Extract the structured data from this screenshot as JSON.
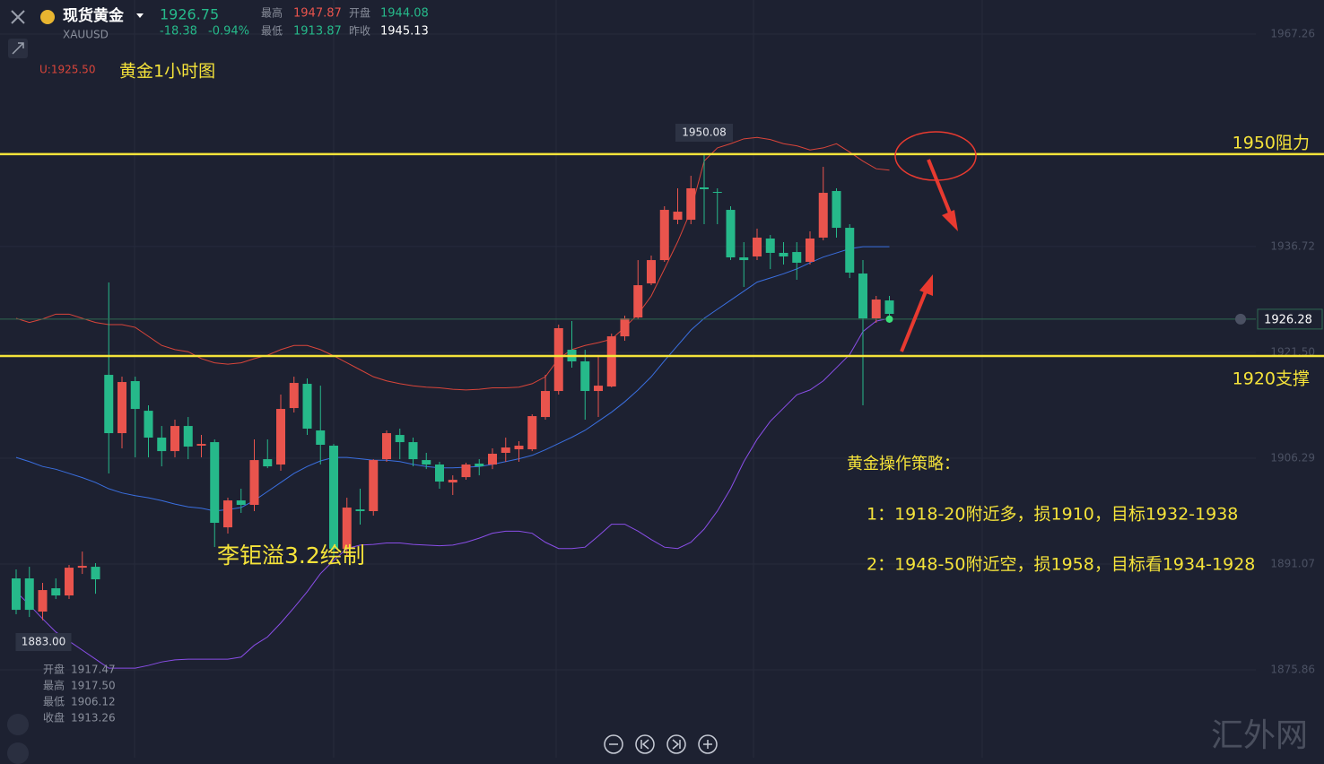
{
  "header": {
    "name": "现货黄金",
    "symbol": "XAUUSD",
    "price": "1926.75",
    "change": "-18.38",
    "change_pct": "-0.94%",
    "stats": [
      {
        "label": "最高",
        "value": "1947.87"
      },
      {
        "label": "开盘",
        "value": "1944.08"
      },
      {
        "label": "最低",
        "value": "1913.87"
      },
      {
        "label": "昨收",
        "value": "1945.13"
      }
    ]
  },
  "legend": "U:1925.50",
  "readout": [
    {
      "label": "开盘",
      "value": "1917.47"
    },
    {
      "label": "最高",
      "value": "1917.50"
    },
    {
      "label": "最低",
      "value": "1906.12"
    },
    {
      "label": "收盘",
      "value": "1913.26"
    }
  ],
  "annotations": {
    "chart_title": "黄金1小时图",
    "author": "李钜溢3.2绘制",
    "strategy_title": "黄金操作策略：",
    "strategy": [
      "1：1918-20附近多，损1910，目标1932-1938",
      "2：1948-50附近空，损1958，目标看1934-1928"
    ]
  },
  "watermark": "汇外网",
  "chart_data": {
    "type": "candlestick",
    "up_color": "#e9544d",
    "down_color": "#26b98a",
    "open": [
      1889.01,
      1889.01,
      1884.24,
      1887.59,
      1886.56,
      1890.55,
      1890.68,
      1918.27,
      1909.89,
      1917.37,
      1913.11,
      1909.25,
      1907.31,
      1910.92,
      1908.09,
      1908.6,
      1896.35,
      1900.22,
      1899.58,
      1906.15,
      1905.38,
      1913.5,
      1916.98,
      1910.28,
      1908.09,
      1893.26,
      1898.93,
      1898.68,
      1906.15,
      1909.63,
      1908.6,
      1906.02,
      1905.38,
      1902.8,
      1903.57,
      1905.51,
      1905.38,
      1907.06,
      1907.57,
      1907.57,
      1912.21,
      1915.95,
      1921.88,
      1920.21,
      1915.95,
      1916.6,
      1923.81,
      1926.52,
      1931.42,
      1934.77,
      1940.57,
      1940.57,
      1945.22,
      1944.57,
      1941.99,
      1935.16,
      1935.29,
      1937.87,
      1935.81,
      1935.93,
      1934.52,
      1938.0,
      1944.7,
      1939.41,
      1932.84,
      1926.39,
      1928.97
    ],
    "high": [
      1890.3,
      1890.68,
      1888.36,
      1889.01,
      1890.94,
      1892.87,
      1891.2,
      1931.55,
      1918.01,
      1918.01,
      1913.89,
      1910.92,
      1911.83,
      1912.21,
      1909.63,
      1908.99,
      1900.61,
      1901.9,
      1908.99,
      1908.99,
      1915.44,
      1918.01,
      1917.76,
      1916.72,
      1908.34,
      1900.61,
      1901.9,
      1906.15,
      1910.28,
      1910.54,
      1909.25,
      1907.06,
      1905.77,
      1903.83,
      1905.64,
      1906.15,
      1907.7,
      1909.25,
      1908.73,
      1912.6,
      1918.27,
      1925.49,
      1926.01,
      1921.88,
      1920.85,
      1924.2,
      1926.78,
      1934.77,
      1935.42,
      1942.51,
      1945.09,
      1946.89,
      1950.08,
      1945.09,
      1942.51,
      1937.35,
      1939.29,
      1938.38,
      1937.35,
      1937.35,
      1938.9,
      1948.18,
      1945.09,
      1939.93,
      1934.77,
      1929.62,
      1929.62
    ],
    "low": [
      1883.85,
      1883.46,
      1883.0,
      1886.04,
      1886.04,
      1889.65,
      1886.81,
      1904.09,
      1907.7,
      1906.41,
      1906.41,
      1905.12,
      1906.41,
      1906.15,
      1906.41,
      1893.52,
      1895.45,
      1898.42,
      1898.68,
      1904.86,
      1904.48,
      1912.86,
      1909.63,
      1905.38,
      1892.23,
      1892.23,
      1896.74,
      1898.03,
      1905.77,
      1906.15,
      1905.12,
      1904.73,
      1901.9,
      1901.0,
      1903.19,
      1903.83,
      1904.73,
      1905.77,
      1905.77,
      1907.31,
      1911.83,
      1915.44,
      1919.3,
      1911.83,
      1912.21,
      1916.47,
      1923.17,
      1926.26,
      1931.16,
      1934.52,
      1939.93,
      1939.93,
      1939.93,
      1939.93,
      1934.77,
      1930.91,
      1934.77,
      1933.48,
      1934.13,
      1931.94,
      1934.13,
      1937.61,
      1938.0,
      1932.19,
      1913.89,
      1925.75,
      1925.75
    ],
    "close": [
      1884.49,
      1884.49,
      1887.33,
      1886.56,
      1890.55,
      1890.81,
      1888.88,
      1909.89,
      1917.24,
      1913.37,
      1909.25,
      1907.31,
      1910.92,
      1907.96,
      1908.34,
      1897.0,
      1900.22,
      1899.58,
      1906.02,
      1905.12,
      1913.37,
      1917.11,
      1910.54,
      1908.22,
      1893.26,
      1899.19,
      1898.68,
      1906.02,
      1909.89,
      1908.6,
      1906.15,
      1905.38,
      1902.93,
      1903.19,
      1905.38,
      1905.12,
      1906.93,
      1907.83,
      1908.09,
      1912.34,
      1915.95,
      1924.98,
      1920.21,
      1915.95,
      1916.72,
      1923.81,
      1926.39,
      1931.16,
      1934.77,
      1941.99,
      1941.73,
      1945.09,
      1944.96,
      1944.44,
      1935.16,
      1934.77,
      1938.0,
      1935.81,
      1935.29,
      1934.39,
      1937.87,
      1944.44,
      1939.41,
      1932.97,
      1926.39,
      1929.1,
      1927.04
    ],
    "bands": [
      {
        "color": "#d9453a",
        "values": [
          1926.4,
          1925.8,
          1926.3,
          1927.0,
          1927.0,
          1926.4,
          1925.8,
          1925.5,
          1925.5,
          1925.1,
          1923.8,
          1922.5,
          1921.9,
          1921.6,
          1920.6,
          1920.0,
          1919.8,
          1920.0,
          1920.6,
          1921.1,
          1921.9,
          1922.5,
          1922.5,
          1921.9,
          1921.0,
          1920.0,
          1919.0,
          1918.0,
          1917.4,
          1917.0,
          1916.7,
          1916.5,
          1916.4,
          1916.2,
          1916.1,
          1916.2,
          1916.4,
          1916.4,
          1916.5,
          1917.0,
          1918.0,
          1920.6,
          1921.9,
          1922.5,
          1922.9,
          1923.4,
          1925.1,
          1927.0,
          1929.6,
          1933.5,
          1937.4,
          1941.9,
          1949.0,
          1950.9,
          1951.5,
          1952.2,
          1952.4,
          1952.1,
          1951.5,
          1951.2,
          1950.6,
          1950.9,
          1951.5,
          1950.3,
          1949.0,
          1947.9,
          1947.7
        ]
      },
      {
        "color": "#3a6fe0",
        "values": [
          1906.4,
          1905.8,
          1905.1,
          1904.7,
          1904.1,
          1903.5,
          1902.8,
          1901.9,
          1901.3,
          1900.9,
          1900.6,
          1900.2,
          1899.7,
          1899.3,
          1899.1,
          1898.7,
          1898.9,
          1899.2,
          1900.2,
          1901.5,
          1902.8,
          1904.1,
          1905.1,
          1905.9,
          1906.4,
          1906.4,
          1906.2,
          1906.0,
          1906.0,
          1905.8,
          1905.4,
          1905.1,
          1904.9,
          1904.9,
          1905.0,
          1905.1,
          1905.4,
          1905.8,
          1906.2,
          1906.7,
          1907.5,
          1908.4,
          1909.3,
          1910.3,
          1911.6,
          1912.9,
          1914.4,
          1916.1,
          1918.0,
          1920.3,
          1922.5,
          1924.7,
          1926.4,
          1927.7,
          1929.0,
          1930.3,
          1931.6,
          1932.2,
          1932.8,
          1933.5,
          1934.4,
          1935.2,
          1935.8,
          1936.4,
          1936.7,
          1936.7,
          1936.7
        ]
      },
      {
        "color": "#8a4ee8",
        "values": [
          1887.1,
          1885.2,
          1883.2,
          1881.3,
          1880.0,
          1878.7,
          1877.4,
          1876.1,
          1876.1,
          1876.1,
          1876.5,
          1877.0,
          1877.3,
          1877.4,
          1877.4,
          1877.4,
          1877.4,
          1877.7,
          1879.4,
          1880.6,
          1882.6,
          1884.8,
          1887.1,
          1889.7,
          1891.6,
          1893.3,
          1893.8,
          1893.9,
          1894.1,
          1894.1,
          1893.9,
          1893.8,
          1893.7,
          1893.8,
          1894.2,
          1894.8,
          1895.5,
          1895.8,
          1895.8,
          1895.5,
          1894.2,
          1893.3,
          1893.3,
          1893.5,
          1895.1,
          1896.8,
          1896.8,
          1895.8,
          1894.6,
          1893.5,
          1893.3,
          1894.2,
          1896.1,
          1898.7,
          1901.9,
          1905.8,
          1909.0,
          1911.6,
          1913.5,
          1915.4,
          1916.1,
          1917.4,
          1919.3,
          1921.2,
          1924.5,
          1926.0,
          1926.4
        ]
      }
    ],
    "ylim": [
      1863.23,
      1972.16
    ],
    "yticks": [
      1875.86,
      1891.07,
      1906.29,
      {
        "value": 1921.5,
        "label": "1921.50"
      },
      1936.72,
      1967.26
    ],
    "grid": true,
    "hlines": [
      {
        "value": 1950.0,
        "label": "1950阻力",
        "color": "#f5e33a"
      },
      {
        "value": 1920.98,
        "label": "1920支撑",
        "color": "#f5e33a"
      }
    ],
    "high_label": "1950.08",
    "low_label": "1883.00",
    "last_price": 1926.28
  }
}
